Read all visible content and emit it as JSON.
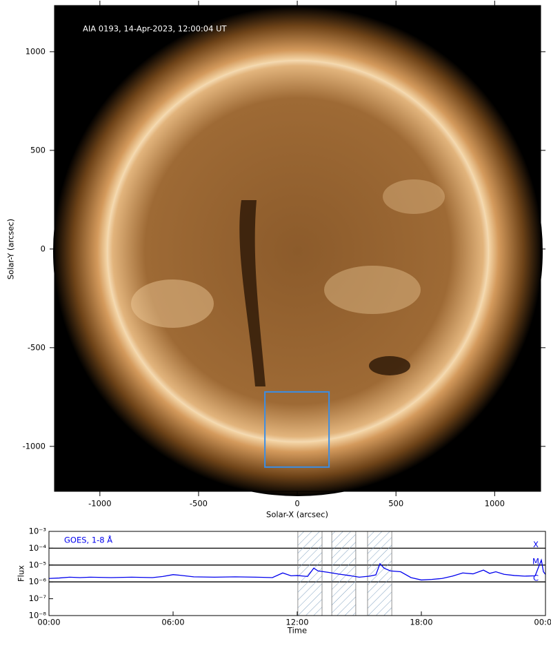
{
  "chart_data": [
    {
      "type": "image",
      "annotation": "AIA 0193, 14-Apr-2023, 12:00:04 UT",
      "xlabel": "Solar-X (arcsec)",
      "ylabel": "Solar-Y (arcsec)",
      "xlim": [
        -1230,
        1233
      ],
      "ylim": [
        -1228,
        1234
      ],
      "xticks": [
        -1000,
        -500,
        0,
        500,
        1000
      ],
      "yticks": [
        -1000,
        -500,
        0,
        500,
        1000
      ],
      "highlight_box": {
        "x": [
          -164,
          161
        ],
        "y": [
          -1105,
          -724
        ],
        "color": "#3a8ee6"
      }
    },
    {
      "type": "line",
      "log_y": true,
      "ylabel": "Flux",
      "xlabel": "Time",
      "xlim": [
        0,
        24
      ],
      "ylim": [
        1e-08,
        0.001
      ],
      "xticks": [
        {
          "value": 0,
          "label": "00:00"
        },
        {
          "value": 6,
          "label": "06:00"
        },
        {
          "value": 12,
          "label": "12:00"
        },
        {
          "value": 18,
          "label": "18:00"
        },
        {
          "value": 24,
          "label": "00:00"
        }
      ],
      "yticks": [
        {
          "value": 1e-08,
          "label": "10⁻⁸"
        },
        {
          "value": 1e-07,
          "label": "10⁻⁷"
        },
        {
          "value": 1e-06,
          "label": "10⁻⁶"
        },
        {
          "value": 1e-05,
          "label": "10⁻⁵"
        },
        {
          "value": 0.0001,
          "label": "10⁻⁴"
        },
        {
          "value": 0.001,
          "label": "10⁻³"
        }
      ],
      "hlines": [
        0.0001,
        1e-05,
        1e-06
      ],
      "class_labels": [
        {
          "value": 0.0001,
          "label": "X"
        },
        {
          "value": 1e-05,
          "label": "M"
        },
        {
          "value": 1e-06,
          "label": "C"
        }
      ],
      "shaded_intervals": [
        [
          12.03,
          13.2
        ],
        [
          13.67,
          14.83
        ],
        [
          15.4,
          16.57
        ]
      ],
      "x": [
        0,
        0.5,
        1,
        1.5,
        2,
        3,
        4,
        5,
        5.5,
        6,
        6.3,
        7,
        8,
        9,
        10,
        10.8,
        11.3,
        11.7,
        12,
        12.5,
        12.8,
        13,
        13.5,
        14,
        14.5,
        15,
        15.5,
        15.8,
        16,
        16.2,
        16.5,
        17,
        17.5,
        18,
        18.5,
        19,
        19.5,
        20,
        20.5,
        21,
        21.3,
        21.6,
        22,
        22.5,
        23,
        23.5,
        23.8,
        23.9,
        24
      ],
      "series": [
        {
          "name": "GOES, 1-8 Å",
          "color": "#0000ee",
          "values": [
            1.6e-06,
            1.7e-06,
            1.9e-06,
            1.8e-06,
            1.9e-06,
            1.8e-06,
            1.9e-06,
            1.8e-06,
            2.1e-06,
            2.7e-06,
            2.5e-06,
            2e-06,
            1.9e-06,
            2e-06,
            1.9e-06,
            1.8e-06,
            3.4e-06,
            2.3e-06,
            2.4e-06,
            2.1e-06,
            6.6e-06,
            4.5e-06,
            3.7e-06,
            2.9e-06,
            2.4e-06,
            1.9e-06,
            2.2e-06,
            2.6e-06,
            1.2e-05,
            6.5e-06,
            4.5e-06,
            4e-06,
            1.8e-06,
            1.3e-06,
            1.4e-06,
            1.6e-06,
            2.2e-06,
            3.4e-06,
            3e-06,
            5e-06,
            3.2e-06,
            4e-06,
            2.8e-06,
            2.4e-06,
            2.2e-06,
            2.3e-06,
            2e-05,
            4e-06,
            2.8e-06
          ]
        }
      ]
    }
  ]
}
